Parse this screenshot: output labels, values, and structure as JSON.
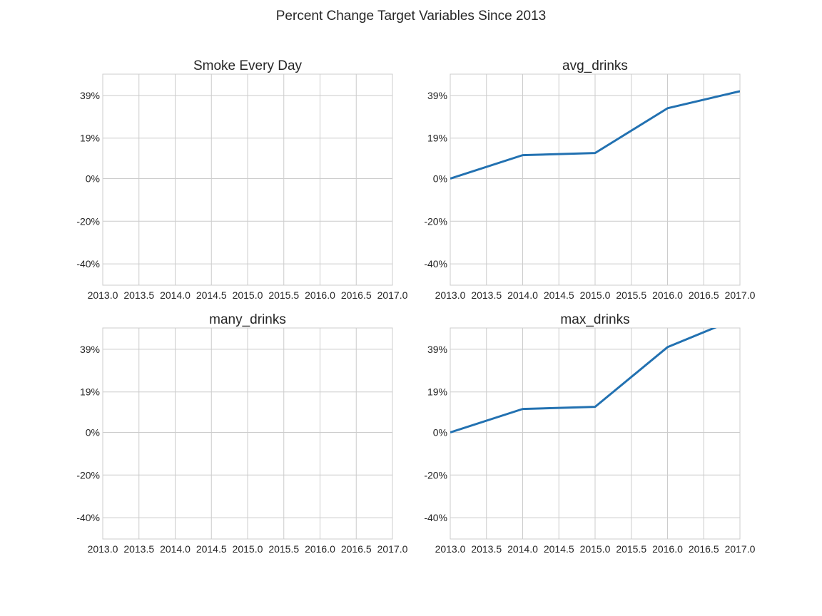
{
  "figure_title": "Percent Change Target Variables Since 2013",
  "colors": {
    "series": "#2271b1",
    "grid": "#cccccc",
    "text": "#262626"
  },
  "chart_data": [
    {
      "type": "line",
      "title": "Smoke Every Day",
      "xlabel": "",
      "ylabel": "",
      "xlim": [
        2013.0,
        2017.0
      ],
      "ylim": [
        -0.5,
        0.49
      ],
      "xticks": [
        2013.0,
        2013.5,
        2014.0,
        2014.5,
        2015.0,
        2015.5,
        2016.0,
        2016.5,
        2017.0
      ],
      "xtick_labels": [
        "2013.0",
        "2013.5",
        "2014.0",
        "2014.5",
        "2015.0",
        "2015.5",
        "2016.0",
        "2016.5",
        "2017.0"
      ],
      "yticks": [
        -0.4,
        -0.2,
        0.0,
        0.19,
        0.39
      ],
      "ytick_labels": [
        "-40%",
        "-20%",
        "0%",
        "19%",
        "39%"
      ],
      "grid": true,
      "series": []
    },
    {
      "type": "line",
      "title": "avg_drinks",
      "xlabel": "",
      "ylabel": "",
      "xlim": [
        2013.0,
        2017.0
      ],
      "ylim": [
        -0.5,
        0.49
      ],
      "xticks": [
        2013.0,
        2013.5,
        2014.0,
        2014.5,
        2015.0,
        2015.5,
        2016.0,
        2016.5,
        2017.0
      ],
      "xtick_labels": [
        "2013.0",
        "2013.5",
        "2014.0",
        "2014.5",
        "2015.0",
        "2015.5",
        "2016.0",
        "2016.5",
        "2017.0"
      ],
      "yticks": [
        -0.4,
        -0.2,
        0.0,
        0.19,
        0.39
      ],
      "ytick_labels": [
        "-40%",
        "-20%",
        "0%",
        "19%",
        "39%"
      ],
      "grid": true,
      "series": [
        {
          "x": [
            2013,
            2014,
            2015,
            2016,
            2017
          ],
          "y": [
            0.0,
            0.11,
            0.12,
            0.33,
            0.41
          ]
        }
      ]
    },
    {
      "type": "line",
      "title": "many_drinks",
      "xlabel": "",
      "ylabel": "",
      "xlim": [
        2013.0,
        2017.0
      ],
      "ylim": [
        -0.5,
        0.49
      ],
      "xticks": [
        2013.0,
        2013.5,
        2014.0,
        2014.5,
        2015.0,
        2015.5,
        2016.0,
        2016.5,
        2017.0
      ],
      "xtick_labels": [
        "2013.0",
        "2013.5",
        "2014.0",
        "2014.5",
        "2015.0",
        "2015.5",
        "2016.0",
        "2016.5",
        "2017.0"
      ],
      "yticks": [
        -0.4,
        -0.2,
        0.0,
        0.19,
        0.39
      ],
      "ytick_labels": [
        "-40%",
        "-20%",
        "0%",
        "19%",
        "39%"
      ],
      "grid": true,
      "series": []
    },
    {
      "type": "line",
      "title": "max_drinks",
      "xlabel": "",
      "ylabel": "",
      "xlim": [
        2013.0,
        2017.0
      ],
      "ylim": [
        -0.5,
        0.49
      ],
      "xticks": [
        2013.0,
        2013.5,
        2014.0,
        2014.5,
        2015.0,
        2015.5,
        2016.0,
        2016.5,
        2017.0
      ],
      "xtick_labels": [
        "2013.0",
        "2013.5",
        "2014.0",
        "2014.5",
        "2015.0",
        "2015.5",
        "2016.0",
        "2016.5",
        "2017.0"
      ],
      "yticks": [
        -0.4,
        -0.2,
        0.0,
        0.19,
        0.39
      ],
      "ytick_labels": [
        "-40%",
        "-20%",
        "0%",
        "19%",
        "39%"
      ],
      "grid": true,
      "series": [
        {
          "x": [
            2013,
            2014,
            2015,
            2016,
            2017
          ],
          "y": [
            0.0,
            0.11,
            0.12,
            0.4,
            0.54
          ]
        }
      ]
    }
  ]
}
